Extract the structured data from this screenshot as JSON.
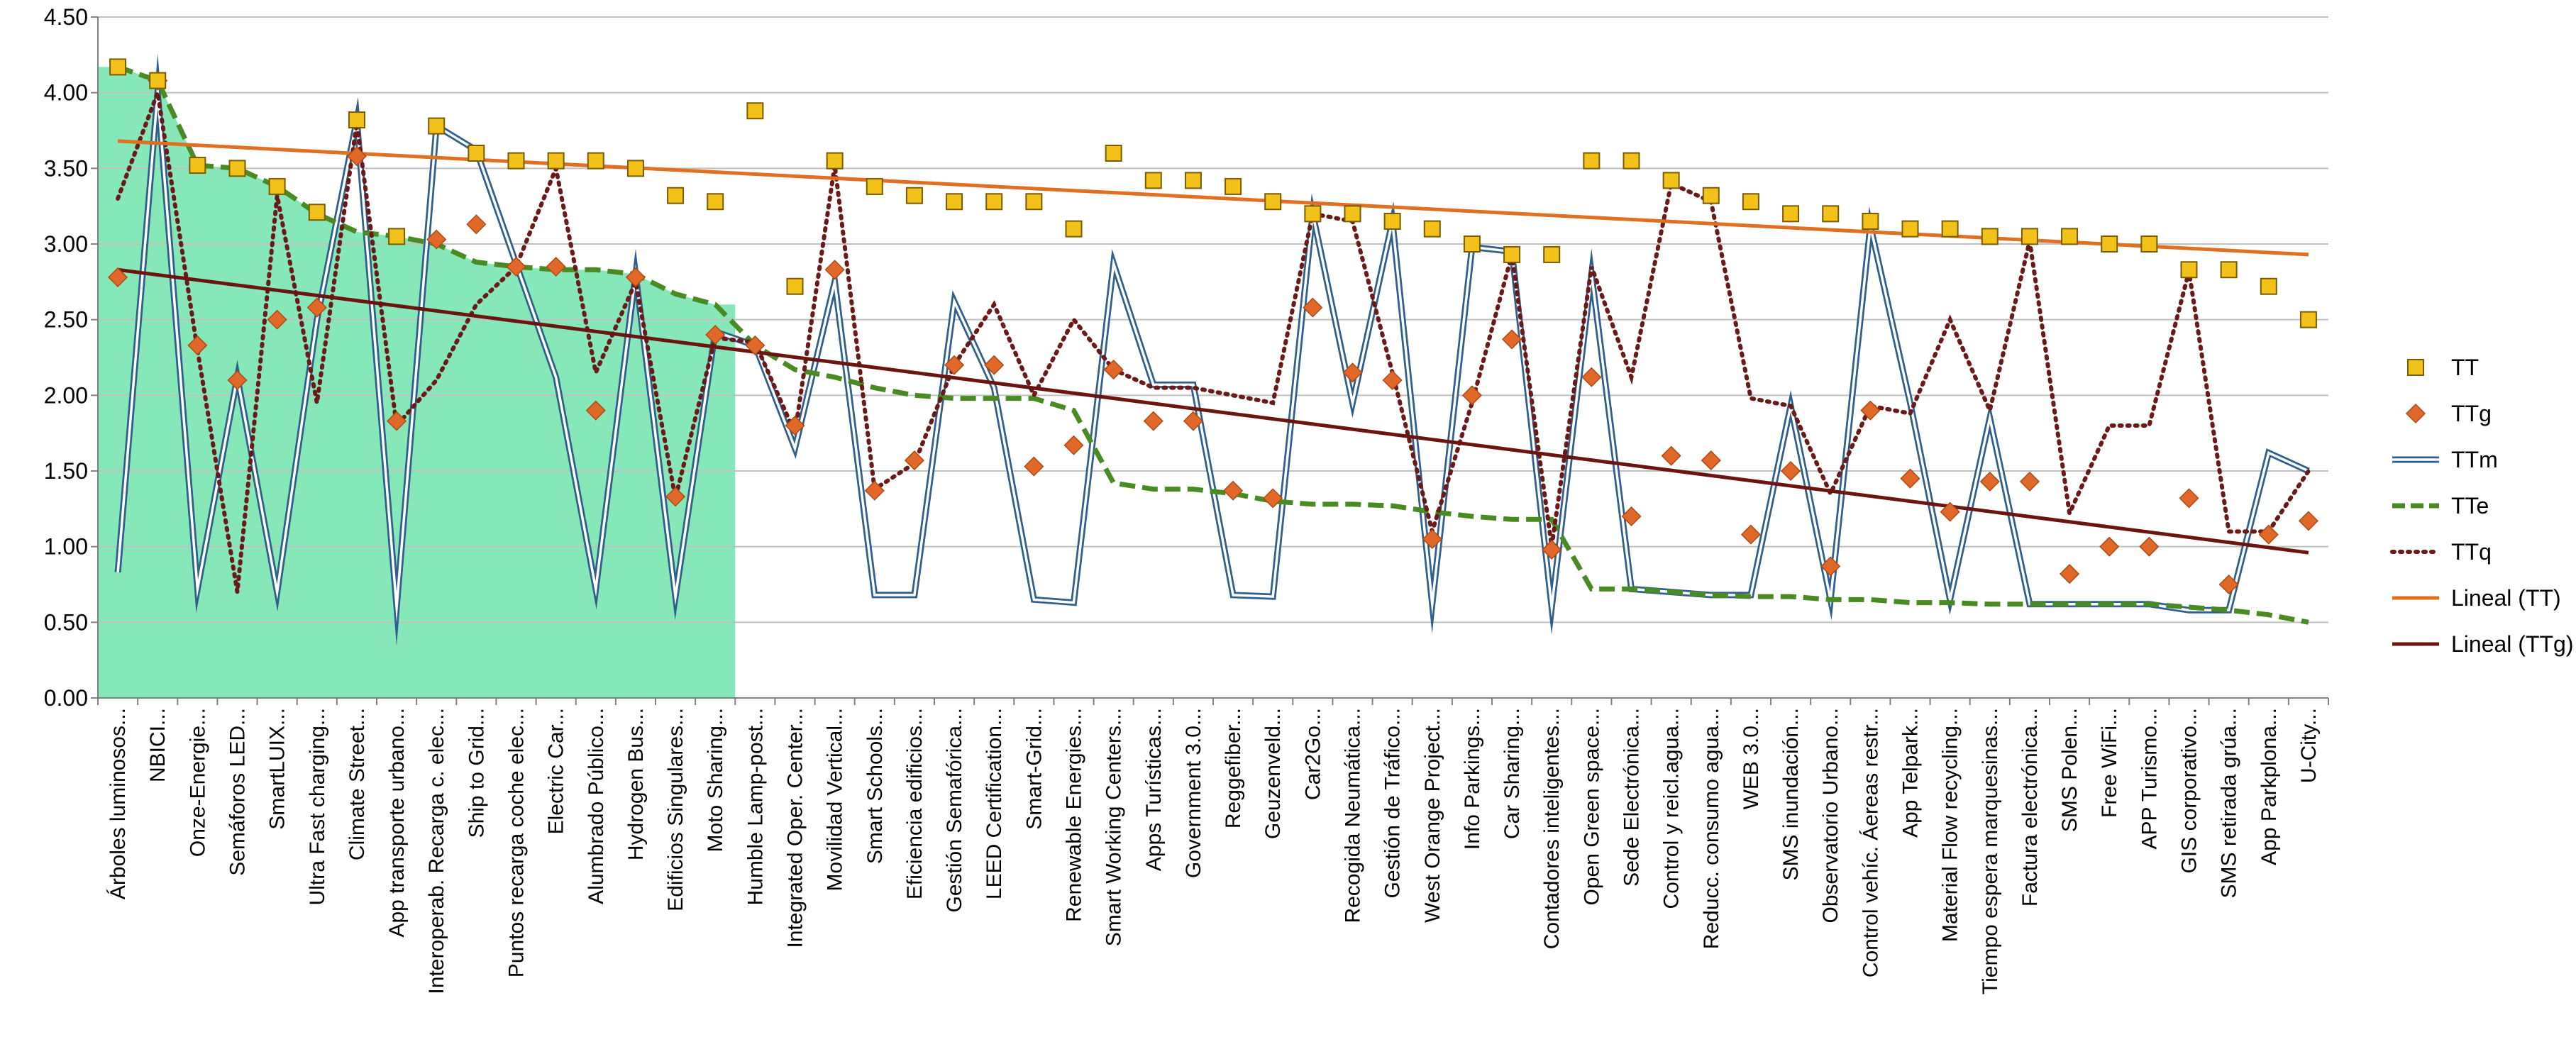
{
  "chart_data": {
    "type": "line",
    "title": "",
    "xlabel": "",
    "ylabel": "",
    "ylim": [
      0,
      4.5
    ],
    "y_ticks": [
      "0.00",
      "0.50",
      "1.00",
      "1.50",
      "2.00",
      "2.50",
      "3.00",
      "3.50",
      "4.00",
      "4.50"
    ],
    "grid": true,
    "legend_position": "right",
    "shaded_region_categories": 16,
    "colors": {
      "TT": "#f2c21a",
      "TT_border": "#7a5c00",
      "TTg": "#e0692a",
      "TTm_outer": "#2f5f8c",
      "TTm_inner": "#ffffff",
      "TTe": "#4a8a22",
      "TTq": "#6b1a1a",
      "LinealTT": "#e07020",
      "LinealTTg": "#6b1510",
      "shade": "#86e8b8",
      "grid": "#c0c0c0"
    },
    "categories": [
      "Árboles luminosos...",
      "NBICI...",
      "Onze-Energie...",
      "Semáforos LED...",
      "SmartLUIX...",
      "Ultra Fast charging...",
      "Climate Street...",
      "App transporte urbano...",
      "Interoperab. Recarga c. elec...",
      "Ship to Grid...",
      "Puntos recarga coche elec...",
      "Electric Car...",
      "Alumbrado Público...",
      "Hydrogen Bus...",
      "Edificios Singulares...",
      "Moto Sharing...",
      "Humble Lamp-post...",
      "Integrated Oper. Center...",
      "Movilidad Vertical...",
      "Smart Schools...",
      "Eficiencia edificios...",
      "Gestión Semafórica...",
      "LEED Certification...",
      "Smart-Grid...",
      "Renewable Energies...",
      "Smart Working Centers...",
      "Apps Turísticas...",
      "Government 3.0...",
      "Reggefiber...",
      "Geuzenveld...",
      "Car2Go...",
      "Recogida Neumática...",
      "Gestión de Tráfico...",
      "West Orange Project...",
      "Info Parkings...",
      "Car Sharing...",
      "Contadores inteligentes...",
      "Open Green space...",
      "Sede Electrónica...",
      "Control y reicl.agua...",
      "Reducc. consumo agua...",
      "WEB 3.0...",
      "SMS inundación...",
      "Observatorio Urbano...",
      "Control vehíc. Áereas restr...",
      "App Telpark...",
      "Material Flow recycling...",
      "Tiempo espera marquesinas...",
      "Factura electrónica...",
      "SMS Polen...",
      "Free WiFi...",
      "APP Turismo...",
      "GIS corporativo...",
      "SMS retirada grúa...",
      "App Parkplona...",
      "U-City..."
    ],
    "series": [
      {
        "name": "TT",
        "style": "marker-square",
        "values": [
          4.17,
          4.08,
          3.52,
          3.5,
          3.38,
          3.21,
          3.82,
          3.05,
          3.78,
          3.6,
          3.55,
          3.55,
          3.55,
          3.5,
          3.32,
          3.28,
          3.88,
          2.72,
          3.55,
          3.38,
          3.32,
          3.28,
          3.28,
          3.28,
          3.1,
          3.6,
          3.42,
          3.42,
          3.38,
          3.28,
          3.2,
          3.2,
          3.15,
          3.1,
          3.0,
          2.93,
          2.93,
          3.55,
          3.55,
          3.42,
          3.32,
          3.28,
          3.2,
          3.2,
          3.15,
          3.1,
          3.1,
          3.05,
          3.05,
          3.05,
          3.0,
          3.0,
          2.83,
          2.83,
          2.72,
          2.5
        ]
      },
      {
        "name": "TTg",
        "style": "marker-diamond",
        "values": [
          2.78,
          4.08,
          2.33,
          2.1,
          2.5,
          2.58,
          3.58,
          1.83,
          3.03,
          3.13,
          2.85,
          2.85,
          1.9,
          2.78,
          1.33,
          2.4,
          2.33,
          1.8,
          2.83,
          1.37,
          1.57,
          2.2,
          2.2,
          1.53,
          1.67,
          2.17,
          1.83,
          1.83,
          1.37,
          1.32,
          2.58,
          2.15,
          2.1,
          1.05,
          2.0,
          2.37,
          0.98,
          2.12,
          1.2,
          1.6,
          1.57,
          1.08,
          1.5,
          0.87,
          1.9,
          1.45,
          1.23,
          1.43,
          1.43,
          0.82,
          1.0,
          1.0,
          1.32,
          0.75,
          1.08,
          1.17
        ]
      },
      {
        "name": "TTm",
        "style": "double-line",
        "values": [
          0.83,
          4.0,
          0.72,
          2.12,
          0.7,
          2.5,
          3.82,
          0.6,
          3.78,
          3.62,
          2.87,
          2.12,
          0.72,
          2.8,
          0.67,
          2.42,
          2.33,
          1.65,
          2.75,
          0.68,
          0.68,
          2.62,
          2.05,
          0.65,
          0.63,
          2.87,
          2.07,
          2.07,
          0.68,
          0.67,
          3.2,
          1.95,
          3.15,
          0.62,
          2.98,
          2.95,
          0.6,
          2.8,
          0.72,
          0.7,
          0.68,
          0.68,
          1.93,
          0.65,
          3.12,
          1.95,
          0.65,
          1.85,
          0.62,
          0.62,
          0.62,
          0.62,
          0.58,
          0.58,
          1.62,
          1.5
        ]
      },
      {
        "name": "TTe",
        "style": "dashed-line",
        "values": [
          4.17,
          4.08,
          3.52,
          3.5,
          3.38,
          3.2,
          3.08,
          3.05,
          3.0,
          2.88,
          2.85,
          2.83,
          2.83,
          2.8,
          2.67,
          2.6,
          2.33,
          2.17,
          2.12,
          2.05,
          2.0,
          1.98,
          1.98,
          1.98,
          1.9,
          1.42,
          1.38,
          1.38,
          1.35,
          1.3,
          1.28,
          1.28,
          1.27,
          1.23,
          1.2,
          1.18,
          1.18,
          0.72,
          0.72,
          0.7,
          0.68,
          0.67,
          0.67,
          0.65,
          0.65,
          0.63,
          0.63,
          0.62,
          0.62,
          0.62,
          0.62,
          0.62,
          0.6,
          0.58,
          0.55,
          0.5
        ]
      },
      {
        "name": "TTq",
        "style": "dotted-line",
        "values": [
          3.3,
          4.0,
          2.3,
          0.7,
          3.32,
          1.95,
          3.8,
          1.8,
          2.1,
          2.6,
          2.85,
          3.5,
          2.15,
          2.75,
          1.32,
          2.38,
          2.35,
          1.75,
          3.52,
          1.38,
          1.55,
          2.2,
          2.6,
          2.0,
          2.5,
          2.17,
          2.05,
          2.05,
          2.0,
          1.95,
          3.2,
          3.15,
          2.15,
          1.1,
          1.95,
          2.93,
          1.0,
          2.85,
          2.12,
          3.4,
          3.28,
          1.98,
          1.93,
          1.35,
          1.93,
          1.88,
          2.5,
          1.9,
          3.02,
          1.22,
          1.8,
          1.8,
          2.82,
          1.1,
          1.1,
          1.5
        ]
      }
    ],
    "trendlines": [
      {
        "name": "Lineal (TT)",
        "of": "TT",
        "start": 3.68,
        "end": 2.93
      },
      {
        "name": "Lineal (TTg)",
        "of": "TTg",
        "start": 2.83,
        "end": 0.96
      }
    ],
    "legend": [
      {
        "key": "TT",
        "label": "TT",
        "symbol": "square"
      },
      {
        "key": "TTg",
        "label": "TTg",
        "symbol": "diamond"
      },
      {
        "key": "TTm",
        "label": "TTm",
        "symbol": "double-line"
      },
      {
        "key": "TTe",
        "label": "TTe",
        "symbol": "dashed"
      },
      {
        "key": "TTq",
        "label": "TTq",
        "symbol": "dotted"
      },
      {
        "key": "LinealTT",
        "label": "Lineal (TT)",
        "symbol": "line"
      },
      {
        "key": "LinealTTg",
        "label": "Lineal (TTg)",
        "symbol": "line"
      }
    ]
  }
}
